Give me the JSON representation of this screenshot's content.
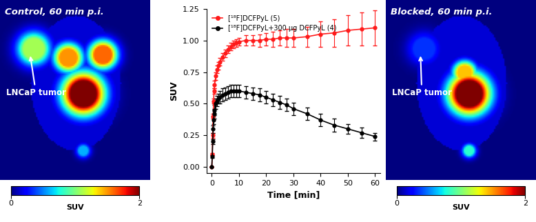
{
  "chart_data": [
    {
      "type": "image",
      "title": "Control, 60 min p.i.",
      "annotation": "LNCaP tumor",
      "values": [
        0.15,
        1.1,
        1.5,
        1.6,
        2.0,
        0.6
      ],
      "colorbar": {
        "label": "SUV",
        "range": [
          0,
          2
        ],
        "ticks": [
          0,
          2
        ]
      }
    },
    {
      "type": "line",
      "xlabel": "Time [min]",
      "ylabel": "SUV",
      "x": [
        0,
        0.17,
        0.33,
        0.5,
        0.67,
        0.83,
        1,
        1.5,
        2,
        2.5,
        3,
        4,
        5,
        6,
        7,
        8,
        9,
        10,
        12.5,
        15,
        17.5,
        20,
        22.5,
        25,
        27.5,
        30,
        35,
        40,
        45,
        50,
        55,
        60
      ],
      "series": [
        {
          "name": "[¹⁸F]DCFPyL (5)",
          "color": "#ff1a1a",
          "marker": "o",
          "values": [
            0,
            0.1,
            0.25,
            0.4,
            0.52,
            0.6,
            0.65,
            0.72,
            0.77,
            0.8,
            0.83,
            0.87,
            0.9,
            0.93,
            0.95,
            0.97,
            0.98,
            0.99,
            1.0,
            1.0,
            1.0,
            1.01,
            1.01,
            1.02,
            1.02,
            1.02,
            1.03,
            1.05,
            1.06,
            1.08,
            1.09,
            1.1
          ],
          "errors": [
            0,
            0.01,
            0.02,
            0.02,
            0.02,
            0.02,
            0.03,
            0.03,
            0.03,
            0.03,
            0.03,
            0.03,
            0.03,
            0.03,
            0.03,
            0.03,
            0.03,
            0.03,
            0.04,
            0.04,
            0.05,
            0.05,
            0.06,
            0.06,
            0.07,
            0.07,
            0.08,
            0.1,
            0.11,
            0.12,
            0.13,
            0.14
          ]
        },
        {
          "name": "[¹⁸F]DCFPyL+300 μg DCFPyL (4)",
          "color": "#000000",
          "marker": "o",
          "values": [
            0,
            0.08,
            0.2,
            0.3,
            0.37,
            0.42,
            0.45,
            0.5,
            0.52,
            0.54,
            0.55,
            0.57,
            0.58,
            0.59,
            0.6,
            0.6,
            0.6,
            0.6,
            0.59,
            0.58,
            0.57,
            0.55,
            0.53,
            0.51,
            0.49,
            0.46,
            0.42,
            0.37,
            0.33,
            0.3,
            0.27,
            0.24
          ],
          "errors": [
            0,
            0.01,
            0.02,
            0.03,
            0.03,
            0.04,
            0.04,
            0.04,
            0.04,
            0.04,
            0.05,
            0.05,
            0.05,
            0.05,
            0.05,
            0.05,
            0.05,
            0.05,
            0.05,
            0.05,
            0.05,
            0.05,
            0.05,
            0.05,
            0.05,
            0.05,
            0.05,
            0.05,
            0.05,
            0.04,
            0.04,
            0.03
          ]
        }
      ],
      "xlim": [
        -2,
        62
      ],
      "xticks": [
        0,
        10,
        20,
        30,
        40,
        50,
        60
      ],
      "ylim": [
        -0.05,
        1.25
      ],
      "yticks": [
        {
          "value": 0,
          "label": "0.00"
        },
        {
          "value": 0.25,
          "label": "0.25"
        },
        {
          "value": 0.5,
          "label": "0.50"
        },
        {
          "value": 0.75,
          "label": "0.75"
        },
        {
          "value": 1.0,
          "label": "1.00"
        },
        {
          "value": 1.25,
          "label": "1.25"
        }
      ],
      "legend": "upper left"
    },
    {
      "type": "image",
      "title": "Blocked, 60 min p.i.",
      "annotation": "LNCaP tumor",
      "values": [
        0.15,
        0.35,
        1.4,
        2.0,
        0.8
      ],
      "colorbar": {
        "label": "SUV",
        "range": [
          0,
          2
        ],
        "ticks": [
          0,
          2
        ]
      }
    }
  ]
}
